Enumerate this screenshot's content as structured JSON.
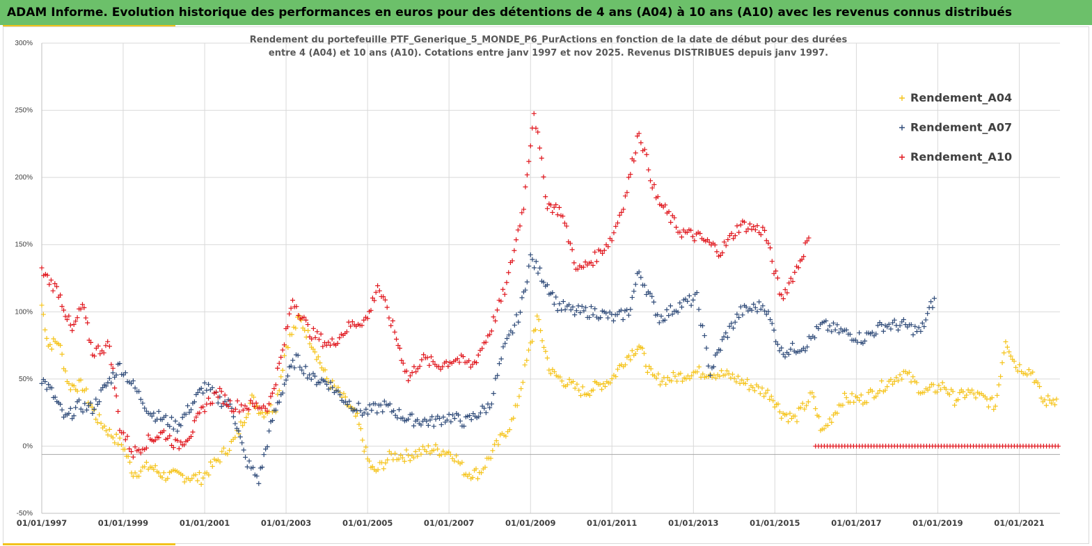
{
  "banner": {
    "title": "ADAM Informe. Evolution historique des performances en euros pour des détentions de 4 ans (A04) à 10 ans (A10) avec les revenus connus distribués"
  },
  "colors": {
    "banner_bg": "#6cc06a",
    "accent": "#f2c21b",
    "a04": "#f5c319",
    "a07": "#2e4a78",
    "a10": "#e0141b"
  },
  "chart_data": {
    "type": "scatter",
    "title_lines": [
      "Rendement du portefeuille PTF_Generique_5_MONDE_P6_PurActions  en fonction de la date de début pour des durées",
      "entre 4 (A04)  et 10 ans (A10). Cotations  entre janv 1997 et nov 2025. Revenus DISTRIBUES depuis janv 1997."
    ],
    "x_axis": {
      "type": "date",
      "range": [
        "1997-01-01",
        "2022-01-01"
      ],
      "tick_labels": [
        "01/01/1997",
        "01/01/1999",
        "01/01/2001",
        "01/01/2003",
        "01/01/2005",
        "01/01/2007",
        "01/01/2009",
        "01/01/2011",
        "01/01/2013",
        "01/01/2015",
        "01/01/2017",
        "01/01/2019",
        "01/01/2021"
      ]
    },
    "y_axis": {
      "range": [
        -0.5,
        3.0
      ],
      "ticks": [
        -0.5,
        0,
        0.5,
        1.0,
        1.5,
        2.0,
        2.5,
        3.0
      ],
      "tick_labels": [
        "-50%",
        "0%",
        "50%",
        "100%",
        "150%",
        "200%",
        "250%",
        "300%"
      ]
    },
    "grid": true,
    "legend_position": "top-right",
    "marker": "+",
    "series": [
      {
        "name": "Rendement_A04",
        "color": "#f5c319",
        "points": [
          [
            "1997-01-01",
            1.05
          ],
          [
            "1997-03-01",
            0.75
          ],
          [
            "1997-06-01",
            0.78
          ],
          [
            "1997-09-01",
            0.45
          ],
          [
            "1998-01-01",
            0.45
          ],
          [
            "1998-05-01",
            0.22
          ],
          [
            "1998-09-01",
            0.1
          ],
          [
            "1999-01-01",
            0.0
          ],
          [
            "1999-04-01",
            -0.2
          ],
          [
            "1999-09-01",
            -0.15
          ],
          [
            "2000-01-01",
            -0.22
          ],
          [
            "2000-06-01",
            -0.22
          ],
          [
            "2000-12-01",
            -0.24
          ],
          [
            "2001-05-01",
            -0.1
          ],
          [
            "2001-10-01",
            0.05
          ],
          [
            "2002-03-01",
            0.35
          ],
          [
            "2002-06-01",
            0.25
          ],
          [
            "2002-10-01",
            0.3
          ],
          [
            "2003-01-01",
            0.75
          ],
          [
            "2003-05-01",
            0.95
          ],
          [
            "2003-09-01",
            0.75
          ],
          [
            "2004-01-01",
            0.5
          ],
          [
            "2004-06-01",
            0.35
          ],
          [
            "2004-10-01",
            0.2
          ],
          [
            "2005-01-01",
            -0.1
          ],
          [
            "2005-03-01",
            -0.2
          ],
          [
            "2005-08-01",
            -0.07
          ],
          [
            "2006-01-01",
            -0.07
          ],
          [
            "2006-08-01",
            -0.02
          ],
          [
            "2007-02-01",
            -0.05
          ],
          [
            "2007-06-01",
            -0.2
          ],
          [
            "2007-10-01",
            -0.2
          ],
          [
            "2008-03-01",
            0.0
          ],
          [
            "2008-08-01",
            0.2
          ],
          [
            "2009-01-01",
            0.75
          ],
          [
            "2009-03-01",
            0.95
          ],
          [
            "2009-07-01",
            0.55
          ],
          [
            "2010-01-01",
            0.45
          ],
          [
            "2010-05-01",
            0.4
          ],
          [
            "2010-09-01",
            0.45
          ],
          [
            "2011-01-01",
            0.5
          ],
          [
            "2011-05-01",
            0.65
          ],
          [
            "2011-09-01",
            0.75
          ],
          [
            "2012-01-01",
            0.5
          ],
          [
            "2012-06-01",
            0.5
          ],
          [
            "2013-01-01",
            0.55
          ],
          [
            "2013-06-01",
            0.55
          ],
          [
            "2013-12-01",
            0.52
          ],
          [
            "2014-06-01",
            0.45
          ],
          [
            "2014-12-01",
            0.38
          ],
          [
            "2015-03-01",
            0.25
          ],
          [
            "2015-07-01",
            0.2
          ],
          [
            "2015-12-01",
            0.38
          ],
          [
            "2016-03-01",
            0.1
          ],
          [
            "2016-09-01",
            0.35
          ],
          [
            "2017-03-01",
            0.35
          ],
          [
            "2017-09-01",
            0.45
          ],
          [
            "2018-03-01",
            0.55
          ],
          [
            "2018-09-01",
            0.4
          ],
          [
            "2019-03-01",
            0.45
          ],
          [
            "2019-06-01",
            0.35
          ],
          [
            "2019-10-01",
            0.4
          ],
          [
            "2020-03-01",
            0.35
          ],
          [
            "2020-06-01",
            0.3
          ],
          [
            "2020-09-01",
            0.8
          ],
          [
            "2020-12-01",
            0.6
          ],
          [
            "2021-05-01",
            0.55
          ],
          [
            "2021-08-01",
            0.33
          ],
          [
            "2021-12-01",
            0.35
          ]
        ]
      },
      {
        "name": "Rendement_A07",
        "color": "#2e4a78",
        "points": [
          [
            "1997-01-01",
            0.5
          ],
          [
            "1997-04-01",
            0.4
          ],
          [
            "1997-08-01",
            0.2
          ],
          [
            "1997-12-01",
            0.3
          ],
          [
            "1998-04-01",
            0.28
          ],
          [
            "1998-08-01",
            0.45
          ],
          [
            "1998-12-01",
            0.6
          ],
          [
            "1999-04-01",
            0.45
          ],
          [
            "1999-09-01",
            0.25
          ],
          [
            "2000-01-01",
            0.2
          ],
          [
            "2000-05-01",
            0.15
          ],
          [
            "2000-09-01",
            0.3
          ],
          [
            "2001-01-01",
            0.45
          ],
          [
            "2001-05-01",
            0.35
          ],
          [
            "2001-09-01",
            0.3
          ],
          [
            "2002-01-01",
            -0.1
          ],
          [
            "2002-05-01",
            -0.25
          ],
          [
            "2002-09-01",
            0.2
          ],
          [
            "2003-01-01",
            0.5
          ],
          [
            "2003-04-01",
            0.65
          ],
          [
            "2003-09-01",
            0.5
          ],
          [
            "2004-01-01",
            0.48
          ],
          [
            "2004-06-01",
            0.35
          ],
          [
            "2004-12-01",
            0.25
          ],
          [
            "2005-06-01",
            0.3
          ],
          [
            "2006-01-01",
            0.2
          ],
          [
            "2006-08-01",
            0.18
          ],
          [
            "2007-01-01",
            0.22
          ],
          [
            "2007-06-01",
            0.18
          ],
          [
            "2008-01-01",
            0.3
          ],
          [
            "2008-05-01",
            0.7
          ],
          [
            "2008-10-01",
            1.0
          ],
          [
            "2009-01-01",
            1.4
          ],
          [
            "2009-06-01",
            1.2
          ],
          [
            "2009-09-01",
            1.05
          ],
          [
            "2010-02-01",
            1.0
          ],
          [
            "2010-08-01",
            1.0
          ],
          [
            "2011-02-01",
            0.95
          ],
          [
            "2011-06-01",
            1.0
          ],
          [
            "2011-09-01",
            1.3
          ],
          [
            "2012-03-01",
            0.95
          ],
          [
            "2012-09-01",
            1.05
          ],
          [
            "2013-02-01",
            1.1
          ],
          [
            "2013-06-01",
            0.55
          ],
          [
            "2013-10-01",
            0.8
          ],
          [
            "2014-03-01",
            1.0
          ],
          [
            "2014-10-01",
            1.05
          ],
          [
            "2015-03-01",
            0.7
          ],
          [
            "2015-10-01",
            0.75
          ],
          [
            "2016-03-01",
            0.9
          ],
          [
            "2016-09-01",
            0.85
          ],
          [
            "2017-03-01",
            0.8
          ],
          [
            "2017-09-01",
            0.9
          ],
          [
            "2018-03-01",
            0.9
          ],
          [
            "2018-08-01",
            0.85
          ],
          [
            "2018-12-01",
            1.1
          ]
        ]
      },
      {
        "name": "Rendement_A10",
        "color": "#e0141b",
        "points": [
          [
            "1997-01-01",
            1.3
          ],
          [
            "1997-06-01",
            1.15
          ],
          [
            "1997-10-01",
            0.85
          ],
          [
            "1998-01-01",
            1.05
          ],
          [
            "1998-04-01",
            0.7
          ],
          [
            "1998-09-01",
            0.75
          ],
          [
            "1998-12-01",
            0.15
          ],
          [
            "1999-04-01",
            -0.05
          ],
          [
            "1999-09-01",
            0.05
          ],
          [
            "2000-01-01",
            0.1
          ],
          [
            "2000-05-01",
            0.0
          ],
          [
            "2000-09-01",
            0.1
          ],
          [
            "2001-01-01",
            0.3
          ],
          [
            "2001-05-01",
            0.4
          ],
          [
            "2001-09-01",
            0.3
          ],
          [
            "2002-02-01",
            0.3
          ],
          [
            "2002-08-01",
            0.3
          ],
          [
            "2002-12-01",
            0.7
          ],
          [
            "2003-03-01",
            1.1
          ],
          [
            "2003-08-01",
            0.85
          ],
          [
            "2004-02-01",
            0.75
          ],
          [
            "2004-08-01",
            0.9
          ],
          [
            "2005-01-01",
            0.95
          ],
          [
            "2005-04-01",
            1.2
          ],
          [
            "2005-09-01",
            0.85
          ],
          [
            "2006-01-01",
            0.5
          ],
          [
            "2006-05-01",
            0.65
          ],
          [
            "2006-10-01",
            0.6
          ],
          [
            "2007-03-01",
            0.65
          ],
          [
            "2007-08-01",
            0.6
          ],
          [
            "2008-01-01",
            0.85
          ],
          [
            "2008-06-01",
            1.2
          ],
          [
            "2008-11-01",
            1.8
          ],
          [
            "2009-02-01",
            2.5
          ],
          [
            "2009-06-01",
            1.8
          ],
          [
            "2009-10-01",
            1.75
          ],
          [
            "2010-03-01",
            1.3
          ],
          [
            "2010-08-01",
            1.4
          ],
          [
            "2011-01-01",
            1.55
          ],
          [
            "2011-05-01",
            1.85
          ],
          [
            "2011-09-01",
            2.35
          ],
          [
            "2012-02-01",
            1.85
          ],
          [
            "2012-09-01",
            1.6
          ],
          [
            "2013-03-01",
            1.55
          ],
          [
            "2013-09-01",
            1.45
          ],
          [
            "2014-03-01",
            1.65
          ],
          [
            "2014-10-01",
            1.6
          ],
          [
            "2015-03-01",
            1.1
          ],
          [
            "2015-08-01",
            1.35
          ],
          [
            "2015-11-01",
            1.55
          ]
        ]
      },
      {
        "name": "Rendement_A10",
        "color": "#e0141b",
        "legend": false,
        "points_note": "zero values",
        "points_range": [
          "2016-01-01",
          "2022-01-01"
        ],
        "value": 0
      }
    ]
  }
}
